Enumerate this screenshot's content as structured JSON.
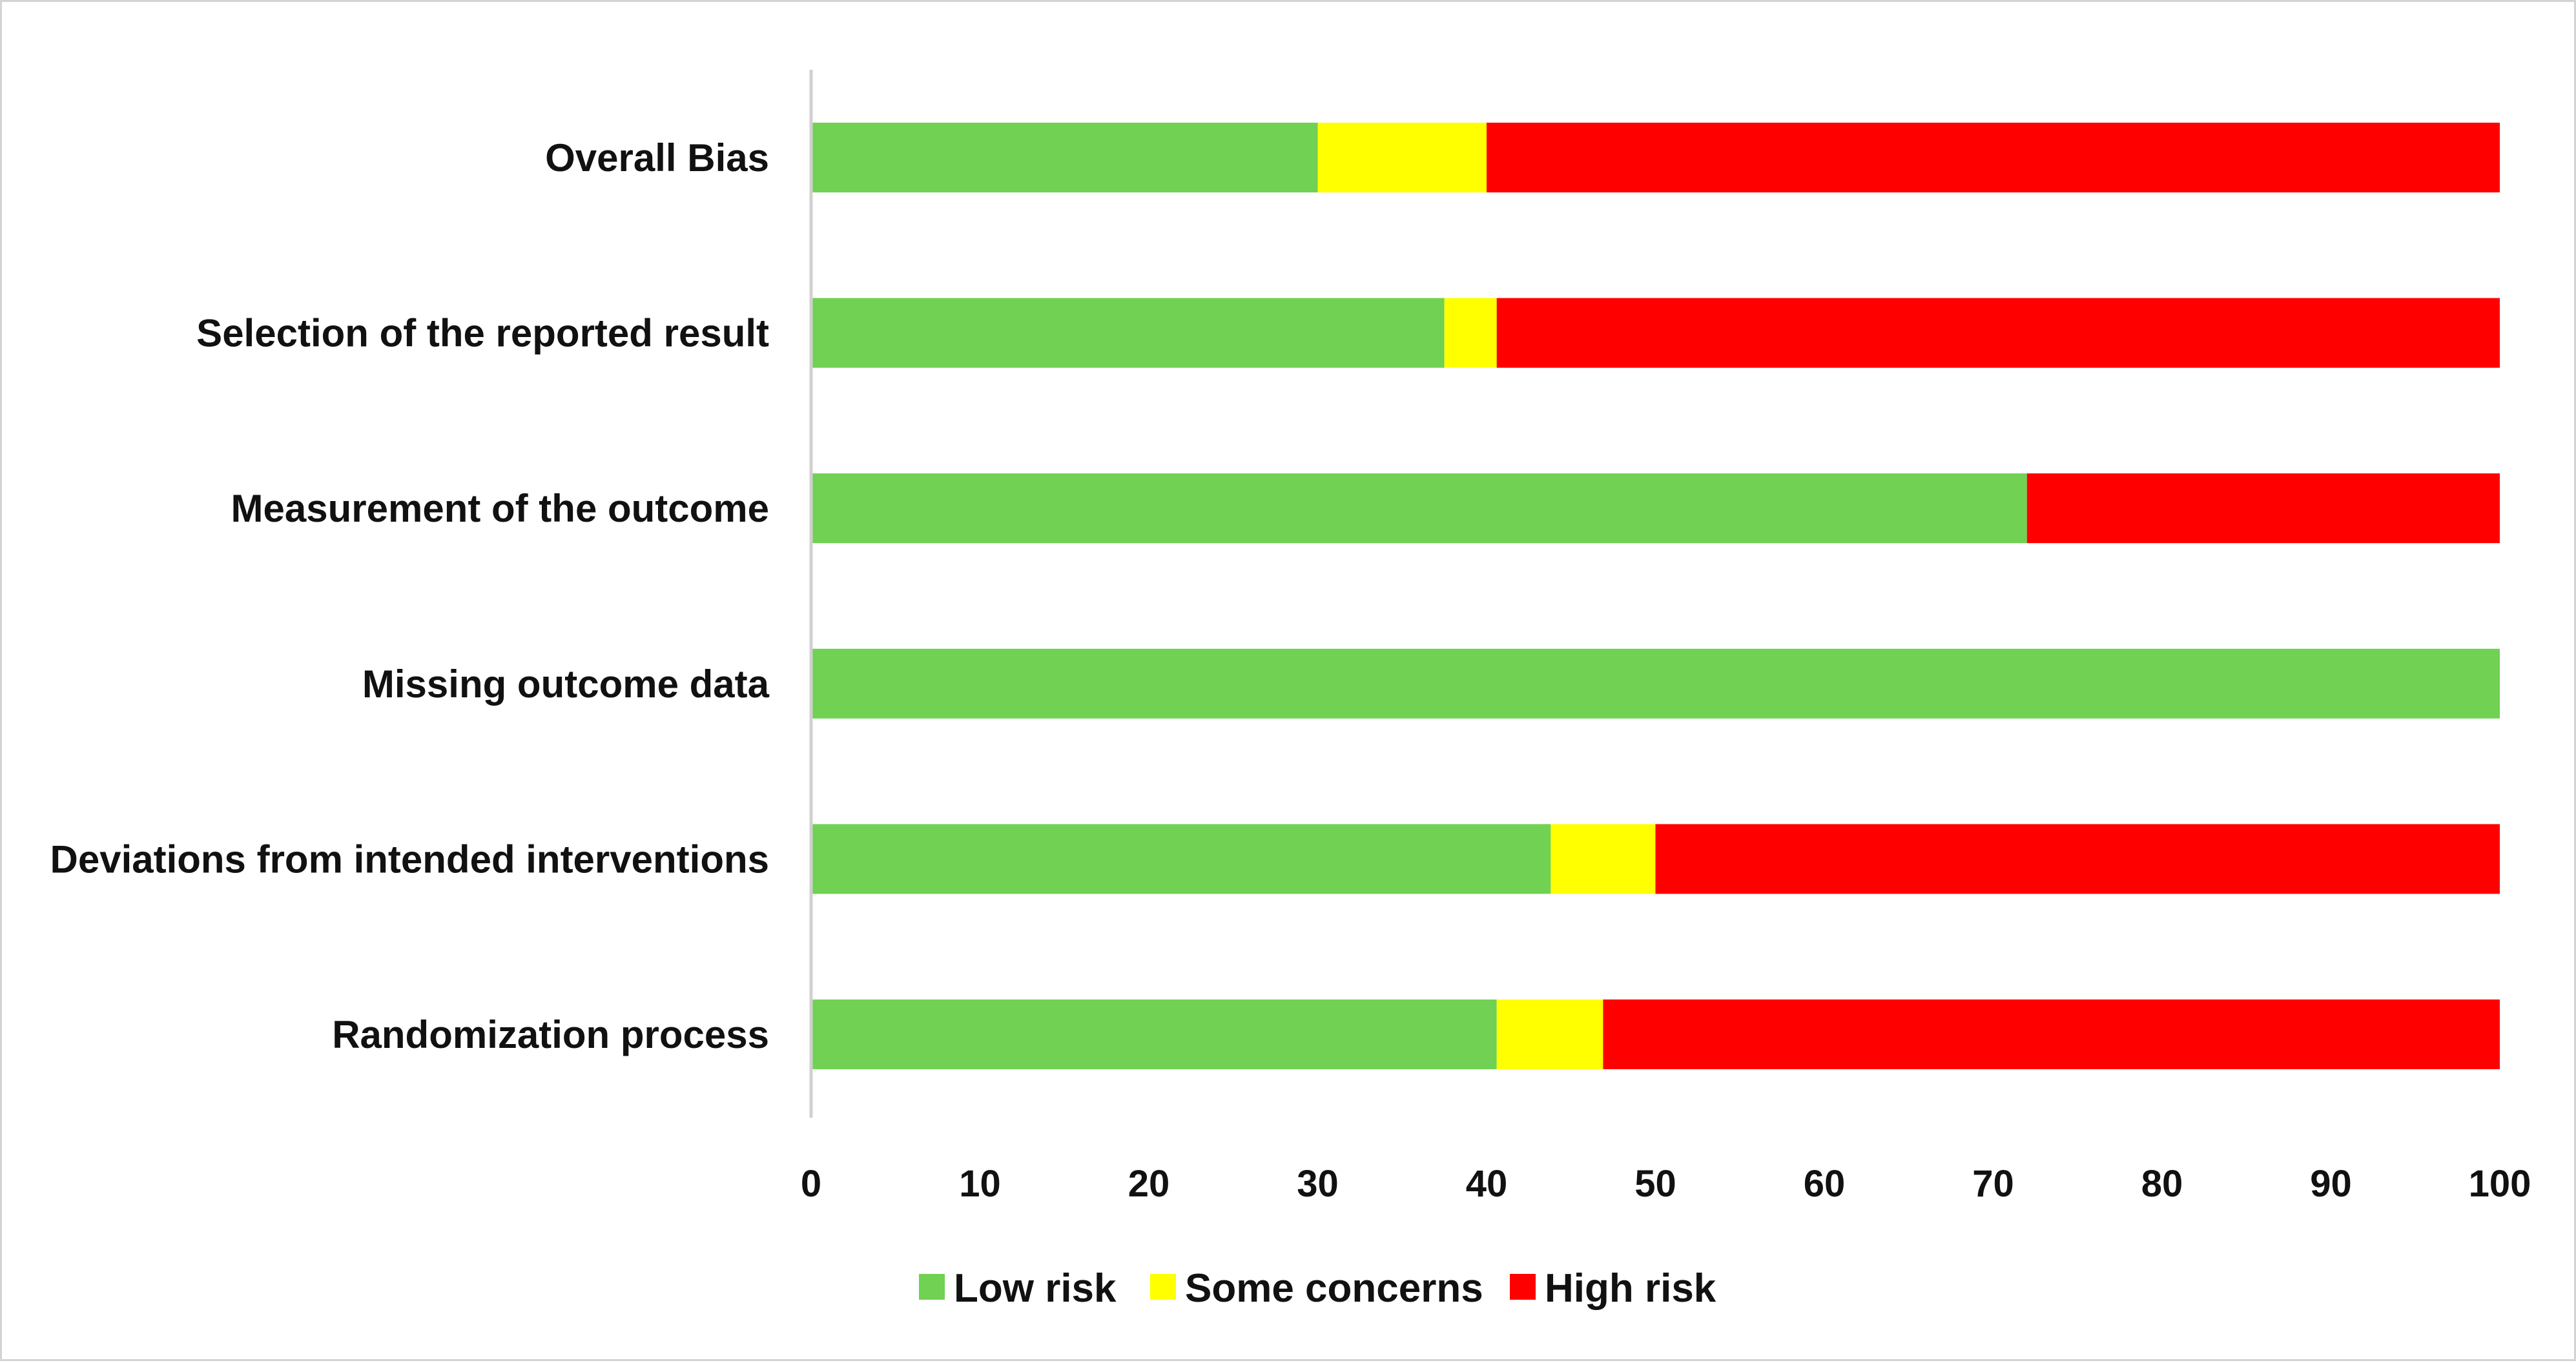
{
  "chart_data": {
    "type": "bar",
    "orientation": "horizontal",
    "stacked": true,
    "categories": [
      "Overall Bias",
      "Selection of the reported result",
      "Measurement of the outcome",
      "Missing outcome data",
      "Deviations from intended interventions",
      "Randomization process"
    ],
    "series": [
      {
        "name": "Low risk",
        "color": "#70d152",
        "values": [
          30,
          37.5,
          72,
          100,
          43.8,
          40.6
        ]
      },
      {
        "name": "Some concerns",
        "color": "#ffff00",
        "values": [
          10,
          3.1,
          0,
          0,
          6.2,
          6.3
        ]
      },
      {
        "name": "High risk",
        "color": "#ff0000",
        "values": [
          60,
          59.4,
          28,
          0,
          50,
          53.1
        ]
      }
    ],
    "xlim": [
      0,
      100
    ],
    "xticks": [
      0,
      10,
      20,
      30,
      40,
      50,
      60,
      70,
      80,
      90,
      100
    ],
    "title": "",
    "xlabel": "",
    "ylabel": "",
    "grid": false,
    "legend_position": "bottom"
  }
}
